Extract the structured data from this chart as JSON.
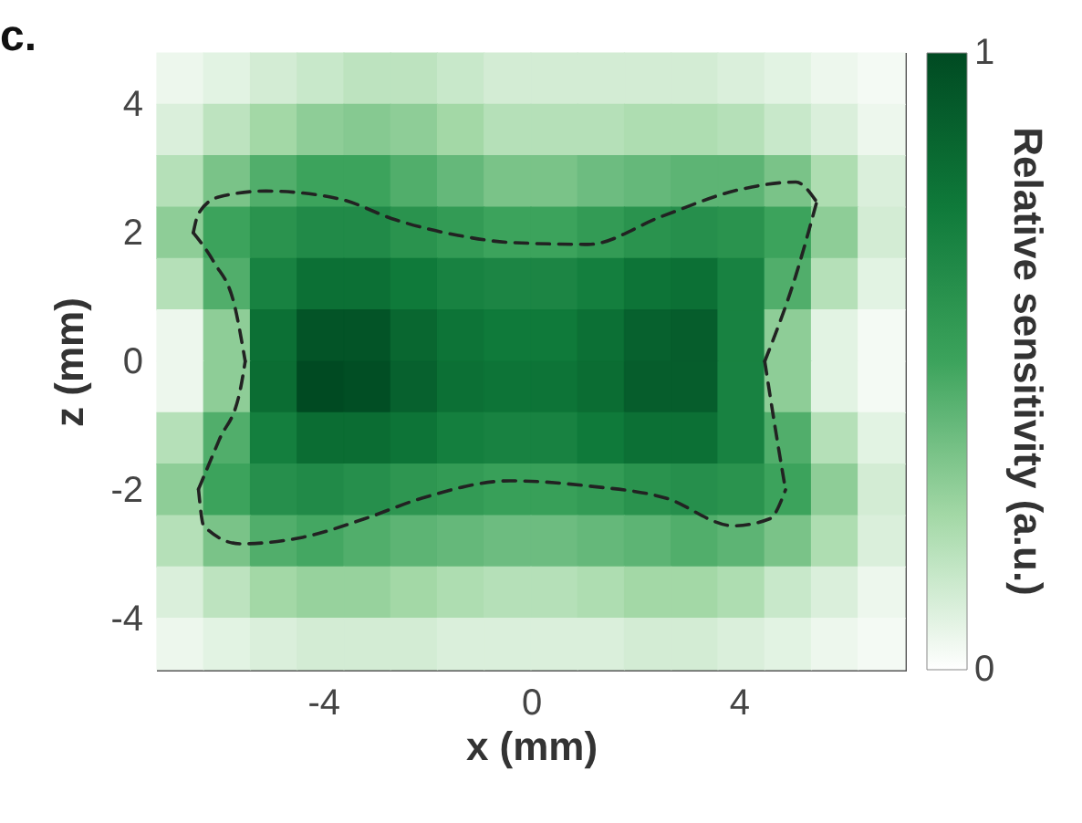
{
  "chart_data": {
    "type": "heatmap",
    "title": "c.",
    "xlabel": "x (mm)",
    "ylabel": "z (mm)",
    "clabel": "Relative sensitivity (a.u.)",
    "xlim": [
      -7.2,
      7.2
    ],
    "ylim": [
      -4.8,
      4.8
    ],
    "xticks": [
      -4,
      0,
      4
    ],
    "yticks": [
      -4,
      -2,
      0,
      2,
      4
    ],
    "clim": [
      0,
      1
    ],
    "cticks": [
      0,
      1
    ],
    "cells": [
      [
        0.05,
        0.08,
        0.12,
        0.15,
        0.18,
        0.18,
        0.15,
        0.12,
        0.12,
        0.12,
        0.12,
        0.12,
        0.1,
        0.08,
        0.05,
        0.03
      ],
      [
        0.1,
        0.18,
        0.25,
        0.3,
        0.32,
        0.3,
        0.25,
        0.2,
        0.2,
        0.2,
        0.22,
        0.22,
        0.2,
        0.15,
        0.1,
        0.05
      ],
      [
        0.2,
        0.35,
        0.45,
        0.5,
        0.5,
        0.45,
        0.4,
        0.35,
        0.35,
        0.38,
        0.4,
        0.42,
        0.42,
        0.35,
        0.22,
        0.1
      ],
      [
        0.3,
        0.5,
        0.6,
        0.65,
        0.65,
        0.6,
        0.55,
        0.5,
        0.5,
        0.55,
        0.6,
        0.62,
        0.6,
        0.5,
        0.3,
        0.12
      ],
      [
        0.2,
        0.45,
        0.7,
        0.8,
        0.8,
        0.75,
        0.7,
        0.68,
        0.68,
        0.72,
        0.78,
        0.8,
        0.7,
        0.45,
        0.2,
        0.08
      ],
      [
        0.05,
        0.3,
        0.8,
        0.95,
        0.95,
        0.85,
        0.78,
        0.75,
        0.75,
        0.8,
        0.88,
        0.9,
        0.7,
        0.3,
        0.08,
        0.03
      ],
      [
        0.05,
        0.3,
        0.82,
        1.0,
        0.98,
        0.88,
        0.8,
        0.78,
        0.78,
        0.82,
        0.9,
        0.9,
        0.7,
        0.3,
        0.08,
        0.03
      ],
      [
        0.2,
        0.45,
        0.72,
        0.82,
        0.82,
        0.78,
        0.72,
        0.7,
        0.7,
        0.75,
        0.8,
        0.8,
        0.7,
        0.45,
        0.2,
        0.08
      ],
      [
        0.3,
        0.5,
        0.62,
        0.65,
        0.62,
        0.58,
        0.55,
        0.52,
        0.52,
        0.55,
        0.6,
        0.62,
        0.6,
        0.5,
        0.3,
        0.12
      ],
      [
        0.2,
        0.35,
        0.45,
        0.48,
        0.45,
        0.42,
        0.4,
        0.38,
        0.38,
        0.4,
        0.42,
        0.45,
        0.42,
        0.35,
        0.22,
        0.1
      ],
      [
        0.1,
        0.18,
        0.25,
        0.28,
        0.28,
        0.25,
        0.22,
        0.2,
        0.2,
        0.22,
        0.25,
        0.25,
        0.22,
        0.15,
        0.1,
        0.05
      ],
      [
        0.05,
        0.08,
        0.1,
        0.12,
        0.12,
        0.12,
        0.1,
        0.1,
        0.1,
        0.1,
        0.12,
        0.12,
        0.1,
        0.08,
        0.05,
        0.03
      ]
    ],
    "series": [
      {
        "type": "line",
        "color": "#222222",
        "line_style": "dashed",
        "x": [
          -6.5,
          -6.4,
          -6.0,
          -5.1,
          -3.7,
          -2.6,
          -1.4,
          -0.4,
          1.1,
          2.5,
          4.0,
          5.1,
          5.5
        ],
        "values": [
          2.0,
          2.3,
          2.56,
          2.65,
          2.53,
          2.2,
          1.96,
          1.85,
          1.82,
          2.25,
          2.67,
          2.79,
          2.48
        ]
      },
      {
        "type": "line",
        "color": "#222222",
        "line_style": "dashed",
        "x": [
          4.5,
          5.1,
          5.5
        ],
        "values": [
          0,
          1.34,
          2.48
        ]
      },
      {
        "type": "line",
        "color": "#222222",
        "line_style": "dashed",
        "x": [
          4.5,
          4.7,
          4.9
        ],
        "values": [
          0,
          -1.03,
          -2.0
        ]
      },
      {
        "type": "line",
        "color": "#222222",
        "line_style": "dashed",
        "x": [
          -6.4,
          -6.3,
          -5.6,
          -4.4,
          -3.2,
          -2.1,
          -0.4,
          1.1,
          2.6,
          3.9,
          4.6,
          4.9
        ],
        "values": [
          -1.99,
          -2.56,
          -2.84,
          -2.74,
          -2.45,
          -2.13,
          -1.86,
          -1.94,
          -2.13,
          -2.56,
          -2.45,
          -2.0
        ]
      },
      {
        "type": "line",
        "color": "#222222",
        "line_style": "dashed",
        "x": [
          -6.4,
          -6.0,
          -5.6,
          -5.5
        ],
        "values": [
          -1.99,
          -1.22,
          -0.46,
          0
        ]
      },
      {
        "type": "line",
        "color": "#222222",
        "line_style": "dashed",
        "x": [
          -6.5,
          -6.1,
          -5.7,
          -5.5
        ],
        "values": [
          2.0,
          1.54,
          0.85,
          0
        ]
      }
    ]
  }
}
